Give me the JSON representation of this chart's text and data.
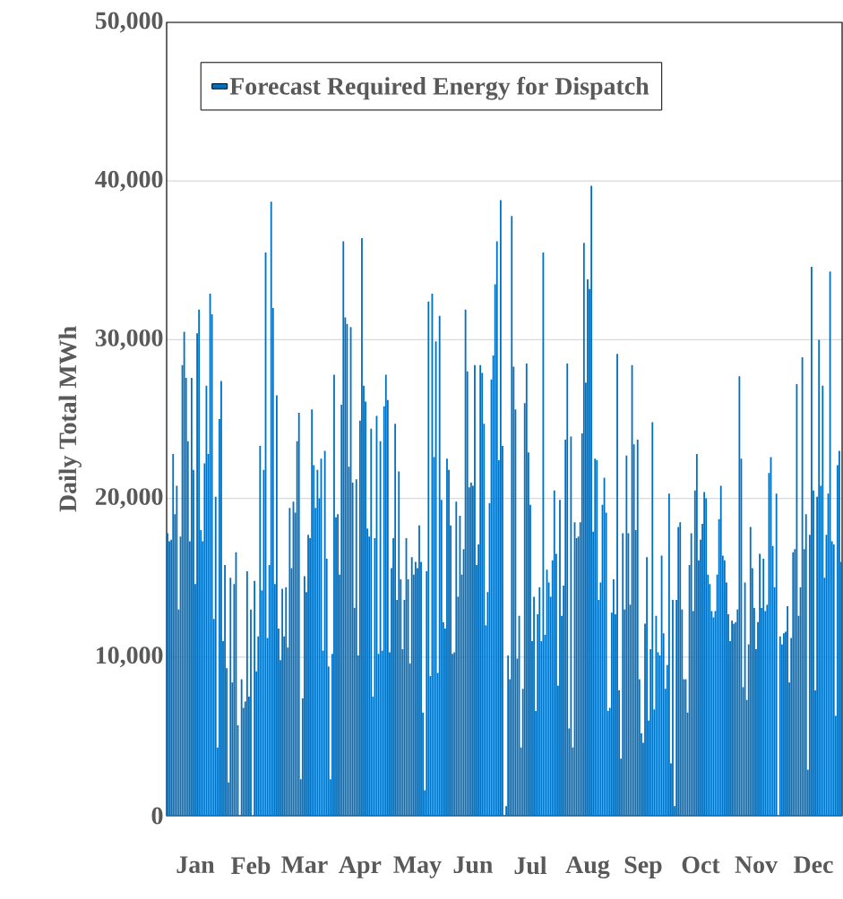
{
  "chart_data": {
    "type": "bar",
    "ylabel": "Daily Total MWh",
    "categories": [
      null,
      null,
      null,
      null,
      null,
      null,
      null,
      null,
      null,
      null,
      null,
      null,
      null,
      null,
      null,
      "Jan",
      null,
      null,
      null,
      null,
      null,
      null,
      null,
      null,
      null,
      null,
      null,
      null,
      null,
      null,
      null,
      null,
      null,
      null,
      null,
      null,
      null,
      null,
      null,
      null,
      null,
      null,
      null,
      null,
      null,
      "Feb",
      null,
      null,
      null,
      null,
      null,
      null,
      null,
      null,
      null,
      null,
      null,
      null,
      null,
      null,
      null,
      null,
      null,
      null,
      null,
      null,
      null,
      null,
      null,
      null,
      null,
      null,
      null,
      null,
      "Mar",
      null,
      null,
      null,
      null,
      null,
      null,
      null,
      null,
      null,
      null,
      null,
      null,
      null,
      null,
      null,
      null,
      null,
      null,
      null,
      null,
      null,
      null,
      null,
      null,
      null,
      null,
      null,
      null,
      null,
      "Apr",
      null,
      null,
      null,
      null,
      null,
      null,
      null,
      null,
      null,
      null,
      null,
      null,
      null,
      null,
      null,
      null,
      null,
      null,
      null,
      null,
      null,
      null,
      null,
      null,
      null,
      null,
      null,
      null,
      null,
      null,
      "May",
      null,
      null,
      null,
      null,
      null,
      null,
      null,
      null,
      null,
      null,
      null,
      null,
      null,
      null,
      null,
      null,
      null,
      null,
      null,
      null,
      null,
      null,
      null,
      null,
      null,
      null,
      null,
      null,
      null,
      "Jun",
      null,
      null,
      null,
      null,
      null,
      null,
      null,
      null,
      null,
      null,
      null,
      null,
      null,
      null,
      null,
      null,
      null,
      null,
      null,
      null,
      null,
      null,
      null,
      null,
      null,
      null,
      null,
      null,
      null,
      null,
      "Jul",
      null,
      null,
      null,
      null,
      null,
      null,
      null,
      null,
      null,
      null,
      null,
      null,
      null,
      null,
      null,
      null,
      null,
      null,
      null,
      null,
      null,
      null,
      null,
      null,
      null,
      null,
      null,
      null,
      null,
      null,
      "Aug",
      null,
      null,
      null,
      null,
      null,
      null,
      null,
      null,
      null,
      null,
      null,
      null,
      null,
      null,
      null,
      null,
      null,
      null,
      null,
      null,
      null,
      null,
      null,
      null,
      null,
      null,
      null,
      null,
      null,
      "Sep",
      null,
      null,
      null,
      null,
      null,
      null,
      null,
      null,
      null,
      null,
      null,
      null,
      null,
      null,
      null,
      null,
      null,
      null,
      null,
      null,
      null,
      null,
      null,
      null,
      null,
      null,
      null,
      null,
      null,
      null,
      "Oct",
      null,
      null,
      null,
      null,
      null,
      null,
      null,
      null,
      null,
      null,
      null,
      null,
      null,
      null,
      null,
      null,
      null,
      null,
      null,
      null,
      null,
      null,
      null,
      null,
      null,
      null,
      null,
      null,
      null,
      "Nov",
      null,
      null,
      null,
      null,
      null,
      null,
      null,
      null,
      null,
      null,
      null,
      null,
      null,
      null,
      null,
      null,
      null,
      null,
      null,
      null,
      null,
      null,
      null,
      null,
      null,
      null,
      null,
      null,
      null,
      null,
      "Dec",
      null,
      null,
      null,
      null,
      null,
      null,
      null,
      null,
      null,
      null,
      null,
      null,
      null,
      null,
      null
    ],
    "series": [
      {
        "name": "Forecast Required Energy for Dispatch",
        "color": "#0070c0",
        "values": [
          17800,
          17300,
          17400,
          22800,
          19000,
          20800,
          13000,
          17600,
          28400,
          30500,
          27600,
          23600,
          17300,
          27600,
          21800,
          14600,
          30400,
          31900,
          18000,
          17300,
          22200,
          27100,
          22800,
          32900,
          31600,
          12400,
          20100,
          4300,
          25000,
          27400,
          11000,
          15800,
          9300,
          2100,
          15000,
          8400,
          14600,
          16600,
          5700,
          0,
          8600,
          6800,
          7200,
          15400,
          7500,
          13000,
          0,
          14800,
          9100,
          11300,
          23300,
          14200,
          21800,
          35500,
          11200,
          15800,
          38700,
          32000,
          14600,
          26500,
          11800,
          9800,
          14300,
          11300,
          14400,
          10600,
          19400,
          15600,
          19800,
          19100,
          23600,
          25400,
          2300,
          7400,
          15100,
          14100,
          17700,
          17500,
          25600,
          22100,
          19400,
          21800,
          20000,
          22500,
          10400,
          23000,
          16200,
          9400,
          2300,
          10200,
          27800,
          18800,
          19000,
          15200,
          25900,
          36200,
          31400,
          31000,
          22000,
          30800,
          21000,
          13100,
          21200,
          10100,
          24900,
          36400,
          27100,
          26100,
          18100,
          17600,
          24400,
          7500,
          17500,
          25200,
          10200,
          23600,
          10400,
          25800,
          27800,
          26200,
          10300,
          15600,
          17500,
          24700,
          13600,
          21700,
          14900,
          10500,
          13600,
          17500,
          14900,
          9600,
          16300,
          15200,
          16000,
          15600,
          18300,
          16000,
          6500,
          1600,
          15400,
          32400,
          8800,
          32900,
          22600,
          29900,
          9000,
          31500,
          19900,
          12200,
          11800,
          22500,
          21800,
          18300,
          10200,
          10300,
          19800,
          13800,
          18900,
          15200,
          16800,
          31900,
          28000,
          20700,
          21000,
          20800,
          28400,
          15800,
          17100,
          28400,
          27900,
          24700,
          12000,
          14100,
          19700,
          27500,
          29000,
          33500,
          36200,
          22400,
          38800,
          23300,
          0,
          600,
          10100,
          8600,
          37800,
          28300,
          25600,
          9900,
          12600,
          4300,
          8000,
          26000,
          28500,
          22900,
          19600,
          11000,
          13800,
          6600,
          12700,
          14400,
          11000,
          35500,
          11400,
          15500,
          14700,
          13800,
          16100,
          20500,
          16500,
          8200,
          19900,
          12600,
          14500,
          23700,
          28500,
          5500,
          23900,
          4300,
          18500,
          17500,
          17600,
          18500,
          24100,
          36100,
          27300,
          33800,
          33200,
          39700,
          17900,
          22500,
          22400,
          13600,
          14700,
          19600,
          21300,
          19100,
          6600,
          6800,
          12800,
          14900,
          12700,
          29100,
          7900,
          3600,
          17800,
          13000,
          22700,
          17800,
          13300,
          28400,
          23400,
          18000,
          23700,
          8600,
          5200,
          4600,
          12100,
          16300,
          6000,
          10500,
          24800,
          6700,
          12600,
          10300,
          10100,
          16400,
          11500,
          8000,
          9500,
          20300,
          3300,
          13600,
          600,
          13600,
          18200,
          18500,
          13000,
          8600,
          8600,
          6500,
          15800,
          17800,
          12900,
          20500,
          22800,
          16100,
          17400,
          18400,
          20400,
          20000,
          15200,
          14600,
          12900,
          12500,
          12900,
          15200,
          18700,
          20800,
          16400,
          16100,
          14700,
          12700,
          11000,
          12300,
          12100,
          12200,
          13000,
          27700,
          22500,
          8100,
          14700,
          7300,
          10800,
          18200,
          15600,
          13100,
          10500,
          12200,
          16500,
          13100,
          16200,
          12900,
          13300,
          21600,
          22600,
          17000,
          14400,
          20300,
          0,
          11300,
          10800,
          11500,
          11600,
          13200,
          8400,
          11200,
          16600,
          16800,
          27200,
          12600,
          14400,
          28900,
          16800,
          19000,
          2900,
          17700,
          34600,
          20500,
          7900,
          20100,
          30000,
          20800,
          27100,
          15000,
          17700,
          20300,
          34300,
          17300,
          17100,
          6300,
          22100,
          23000,
          16000
        ]
      }
    ],
    "ylim": [
      0,
      50000
    ],
    "yticks": [
      {
        "value": 0,
        "label": "0"
      },
      {
        "value": 10000,
        "label": "10,000"
      },
      {
        "value": 20000,
        "label": "20,000"
      },
      {
        "value": 30000,
        "label": "30,000"
      },
      {
        "value": 40000,
        "label": "40,000"
      },
      {
        "value": 50000,
        "label": "50,000"
      }
    ],
    "grid": "y",
    "legend": "top left"
  }
}
